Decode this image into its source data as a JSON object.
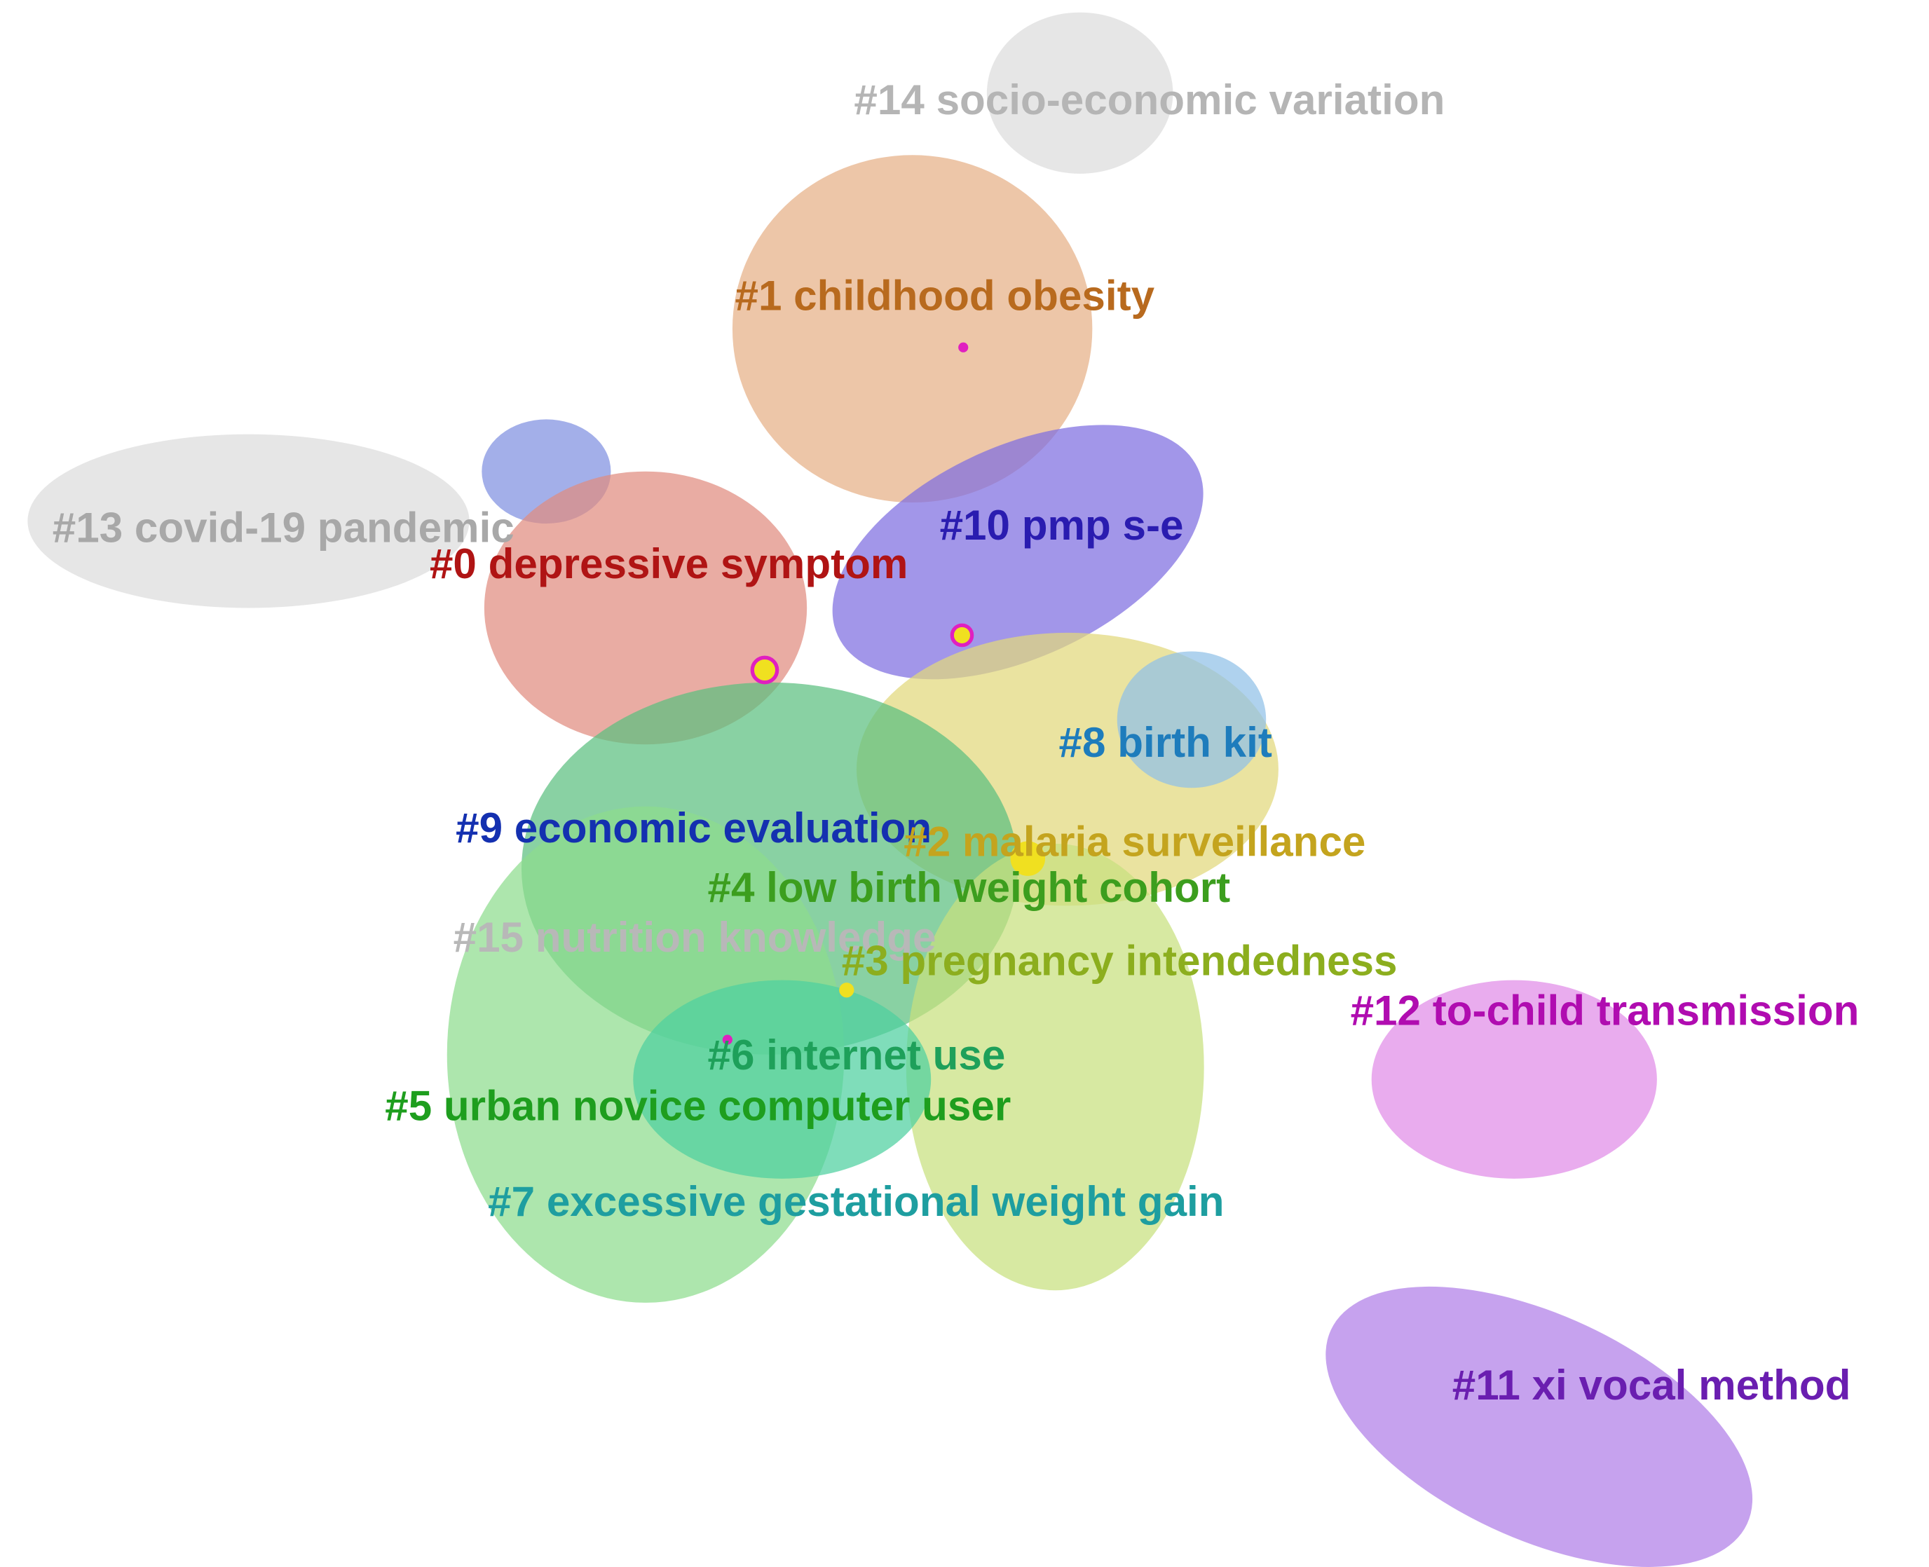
{
  "clusters": [
    {
      "label": "#14 socio-economic variation",
      "color": "#b5b5b5"
    },
    {
      "label": "#1 childhood obesity",
      "color": "#b86a1e"
    },
    {
      "label": "#13 covid-19 pandemic",
      "color": "#a8a8a8"
    },
    {
      "label": "#10 pmp s-e",
      "color": "#2a1cb0"
    },
    {
      "label": "#0 depressive symptom",
      "color": "#b01414"
    },
    {
      "label": "#8 birth kit",
      "color": "#1e7cbc"
    },
    {
      "label": "#9 economic evaluation",
      "color": "#1430b0"
    },
    {
      "label": "#2 malaria surveillance",
      "color": "#c4a41e"
    },
    {
      "label": "#4 low birth weight cohort",
      "color": "#3c9e1e"
    },
    {
      "label": "#15 nutrition knowledge",
      "color": "#b8b8b8"
    },
    {
      "label": "#3 pregnancy intendedness",
      "color": "#8cae1e"
    },
    {
      "label": "#12 to-child transmission",
      "color": "#b00cb0"
    },
    {
      "label": "#6 internet use",
      "color": "#1ea05a"
    },
    {
      "label": "#5 urban novice computer user",
      "color": "#1e9e1e"
    },
    {
      "label": "#7 excessive gestational weight gain",
      "color": "#1e9ea0"
    },
    {
      "label": "#11 xi vocal method",
      "color": "#6a1eb0"
    }
  ]
}
